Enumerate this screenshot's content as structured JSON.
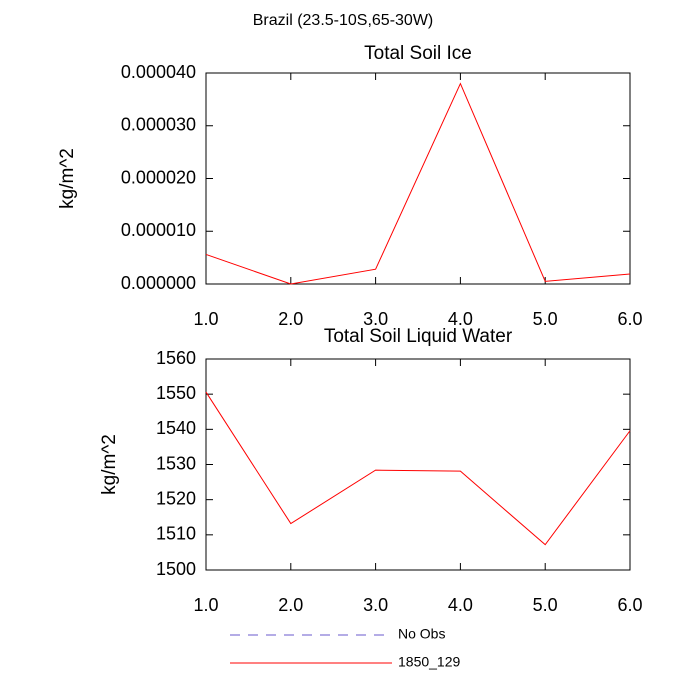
{
  "title": "Brazil (23.5-10S,65-30W)",
  "legend": [
    {
      "name": "No Obs",
      "color": "#6a5acd",
      "dash": true
    },
    {
      "name": "1850_129",
      "color": "#ff0000",
      "dash": false
    }
  ],
  "chart_data": [
    {
      "type": "line",
      "title": "Total Soil Ice",
      "ylabel": "kg/m^2",
      "x": [
        1,
        2,
        3,
        4,
        5,
        6
      ],
      "series": [
        {
          "color": "#ff0000",
          "values": [
            5.6e-06,
            0,
            2.8e-06,
            3.8e-05,
            5e-07,
            1.9e-06
          ]
        }
      ],
      "xlim": [
        1,
        6
      ],
      "xticks": [
        {
          "value": 1,
          "label": "1.0"
        },
        {
          "value": 2,
          "label": "2.0"
        },
        {
          "value": 3,
          "label": "3.0"
        },
        {
          "value": 4,
          "label": "4.0"
        },
        {
          "value": 5,
          "label": "5.0"
        },
        {
          "value": 6,
          "label": "6.0"
        }
      ],
      "ylim": [
        0,
        4e-05
      ],
      "yticks": [
        {
          "value": 0,
          "label": "0.000000"
        },
        {
          "value": 1e-05,
          "label": "0.000010"
        },
        {
          "value": 2e-05,
          "label": "0.000020"
        },
        {
          "value": 3e-05,
          "label": "0.000030"
        },
        {
          "value": 4e-05,
          "label": "0.000040"
        }
      ]
    },
    {
      "type": "line",
      "title": "Total Soil Liquid Water",
      "ylabel": "kg/m^2",
      "x": [
        1,
        2,
        3,
        4,
        5,
        6
      ],
      "series": [
        {
          "color": "#ff0000",
          "values": [
            1550.6,
            1513.2,
            1528.4,
            1528.1,
            1507.2,
            1539.6
          ]
        }
      ],
      "xlim": [
        1,
        6
      ],
      "xticks": [
        {
          "value": 1,
          "label": "1.0"
        },
        {
          "value": 2,
          "label": "2.0"
        },
        {
          "value": 3,
          "label": "3.0"
        },
        {
          "value": 4,
          "label": "4.0"
        },
        {
          "value": 5,
          "label": "5.0"
        },
        {
          "value": 6,
          "label": "6.0"
        }
      ],
      "ylim": [
        1500,
        1560
      ],
      "yticks": [
        1500,
        1510,
        1520,
        1530,
        1540,
        1550,
        1560
      ]
    }
  ]
}
